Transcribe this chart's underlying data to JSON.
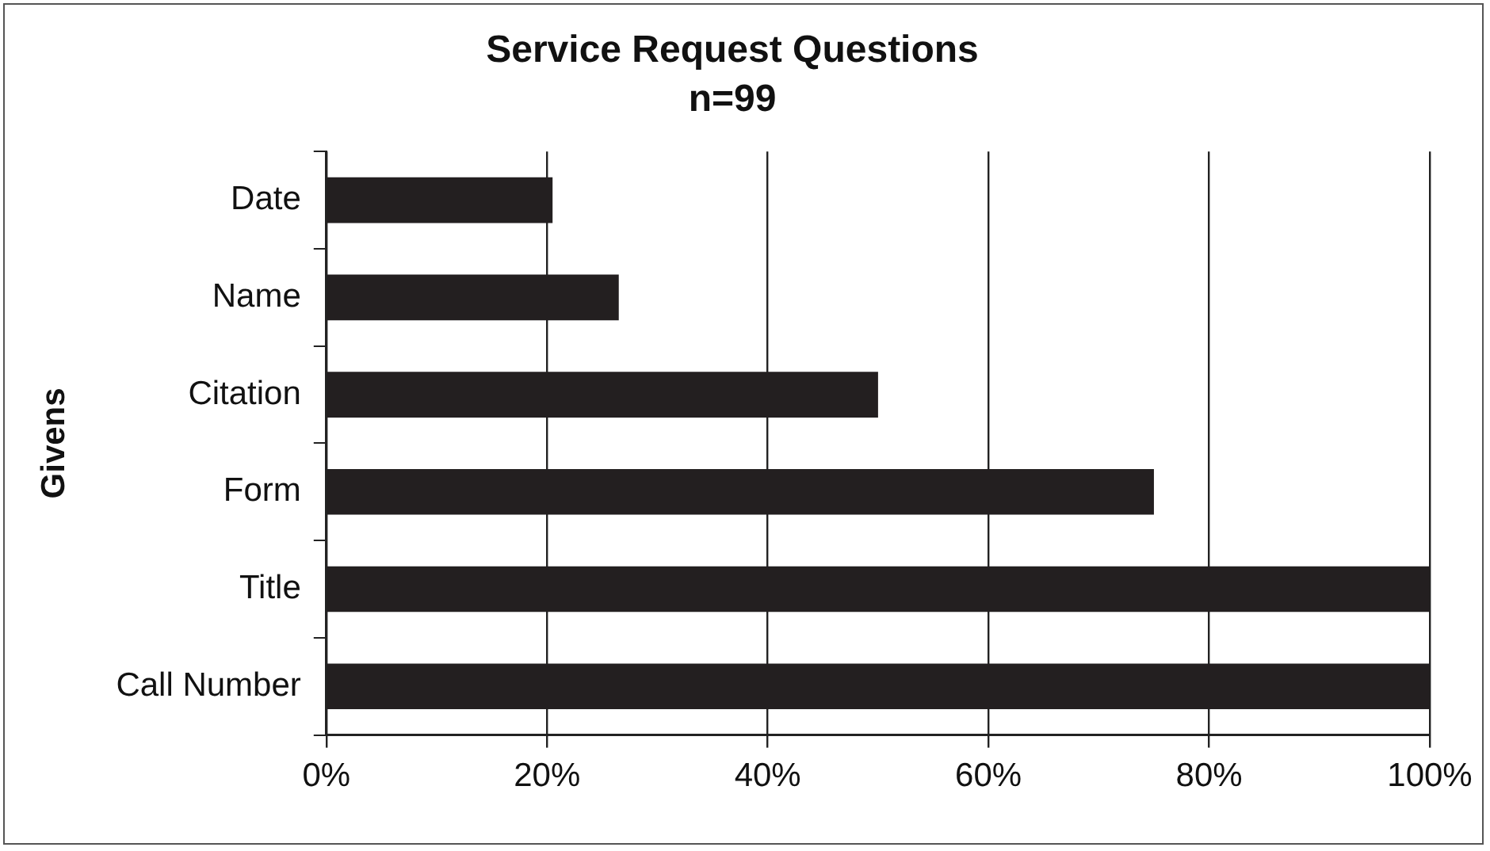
{
  "chart_data": {
    "type": "bar",
    "orientation": "horizontal",
    "title": "Service Request Questions",
    "subtitle": "n=99",
    "ylabel": "Givens",
    "categories": [
      "Date",
      "Name",
      "Citation",
      "Form",
      "Title",
      "Call Number"
    ],
    "values": [
      20.5,
      26.5,
      50,
      75,
      100,
      100
    ],
    "color": "#231f20",
    "xlim": [
      0,
      100
    ],
    "xticks": [
      {
        "value": 0,
        "label": "0%"
      },
      {
        "value": 20,
        "label": "20%"
      },
      {
        "value": 40,
        "label": "40%"
      },
      {
        "value": 60,
        "label": "60%"
      },
      {
        "value": 80,
        "label": "80%"
      },
      {
        "value": 100,
        "label": "100%"
      }
    ],
    "grid": "x",
    "legend": false
  }
}
